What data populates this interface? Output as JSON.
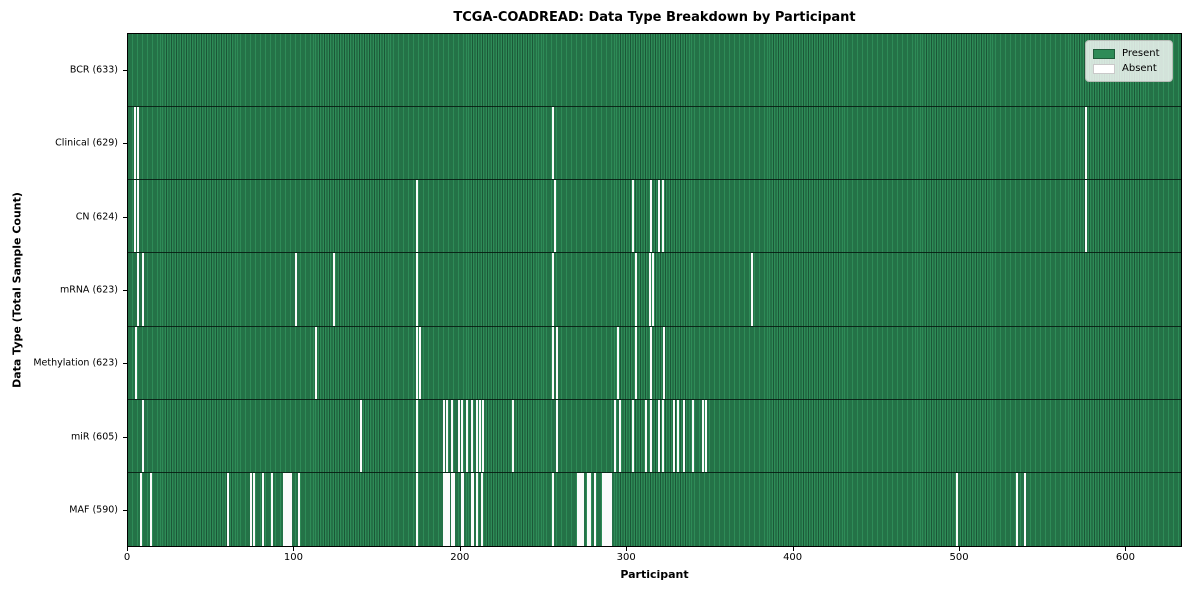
{
  "title": "TCGA-COADREAD: Data Type Breakdown by Participant",
  "legend": {
    "present_label": "Present",
    "absent_label": "Absent"
  },
  "chart_data": {
    "type": "heatmap",
    "title": "TCGA-COADREAD: Data Type Breakdown by Participant",
    "xlabel": "Participant",
    "ylabel": "Data Type (Total Sample Count)",
    "xlim": [
      0,
      634
    ],
    "x_ticks": [
      0,
      100,
      200,
      300,
      400,
      500,
      600
    ],
    "total_participants": 633,
    "present_color": "#2e8b57",
    "absent_color": "#ffffff",
    "legend_position": "upper right",
    "grid": false,
    "rows": [
      {
        "name": "BCR",
        "label": "BCR (633)",
        "count": 633,
        "absent": []
      },
      {
        "name": "Clinical",
        "label": "Clinical (629)",
        "count": 629,
        "absent": [
          4,
          6,
          256,
          577
        ]
      },
      {
        "name": "CN",
        "label": "CN (624)",
        "count": 624,
        "absent": [
          4,
          6,
          174,
          257,
          304,
          315,
          320,
          322,
          577
        ]
      },
      {
        "name": "mRNA",
        "label": "mRNA (623)",
        "count": 623,
        "absent": [
          6,
          9,
          101,
          124,
          174,
          256,
          306,
          314,
          316,
          376
        ]
      },
      {
        "name": "Methylation",
        "label": "Methylation (623)",
        "count": 623,
        "absent": [
          5,
          113,
          174,
          176,
          256,
          258,
          295,
          306,
          315,
          323
        ]
      },
      {
        "name": "miR",
        "label": "miR (605)",
        "count": 605,
        "absent": [
          9,
          140,
          174,
          190,
          192,
          195,
          199,
          201,
          204,
          207,
          210,
          212,
          214,
          232,
          258,
          293,
          296,
          304,
          312,
          315,
          320,
          322,
          329,
          331,
          335,
          340,
          346,
          348
        ]
      },
      {
        "name": "MAF",
        "label": "MAF (590)",
        "count": 590,
        "absent": [
          8,
          14,
          60,
          74,
          76,
          81,
          87,
          94,
          95,
          96,
          97,
          98,
          103,
          174,
          190,
          191,
          192,
          193,
          195,
          196,
          201,
          202,
          207,
          208,
          210,
          213,
          256,
          271,
          272,
          273,
          274,
          277,
          278,
          281,
          286,
          287,
          288,
          289,
          290,
          291,
          499,
          535,
          540
        ]
      }
    ]
  }
}
